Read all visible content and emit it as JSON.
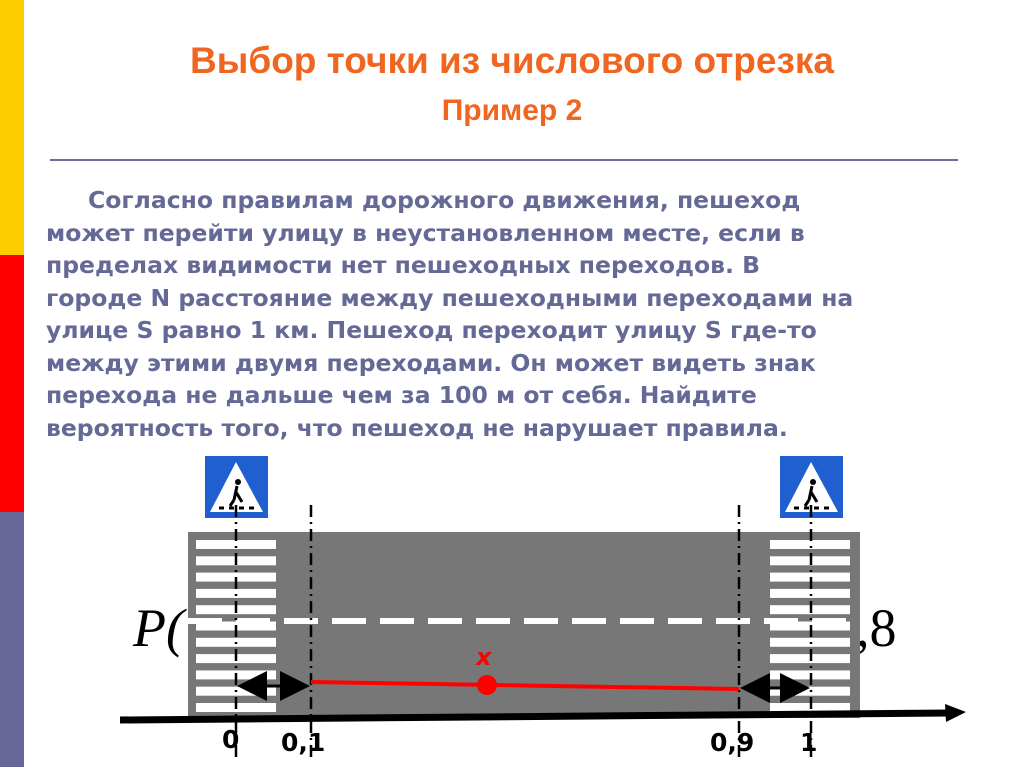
{
  "slide": {
    "title": "Выбор точки из числового отрезка",
    "subtitle": "Пример 2",
    "text_lines": [
      "Согласно правилам дорожного движения, пешеход",
      "может перейти улицу в неустановленном месте, если в",
      "пределах видимости нет пешеходных переходов. В",
      "городе N расстояние между пешеходными переходами на",
      "улице S равно 1 км. Пешеход переходит улицу S где-то",
      "между этими двумя переходами. Он может видеть знак",
      "перехода не дальше чем за 100 м от себя. Найдите",
      "вероятность того, что пешеход не нарушает правила."
    ]
  },
  "diagram": {
    "formula_left": "P(",
    "formula_right": ",8",
    "point_label": "x",
    "ticks": [
      "0",
      "0,1",
      "0,9",
      "1"
    ],
    "sign_icon": "pedestrian-crossing-sign"
  },
  "colors": {
    "title": "#f0651f",
    "text": "#646996",
    "bar_top": "#ffcc00",
    "bar_mid": "#ff0000",
    "bar_bottom": "#666699",
    "road": "#777777",
    "segment": "#ff0000",
    "sign": "#1f5fd0"
  }
}
